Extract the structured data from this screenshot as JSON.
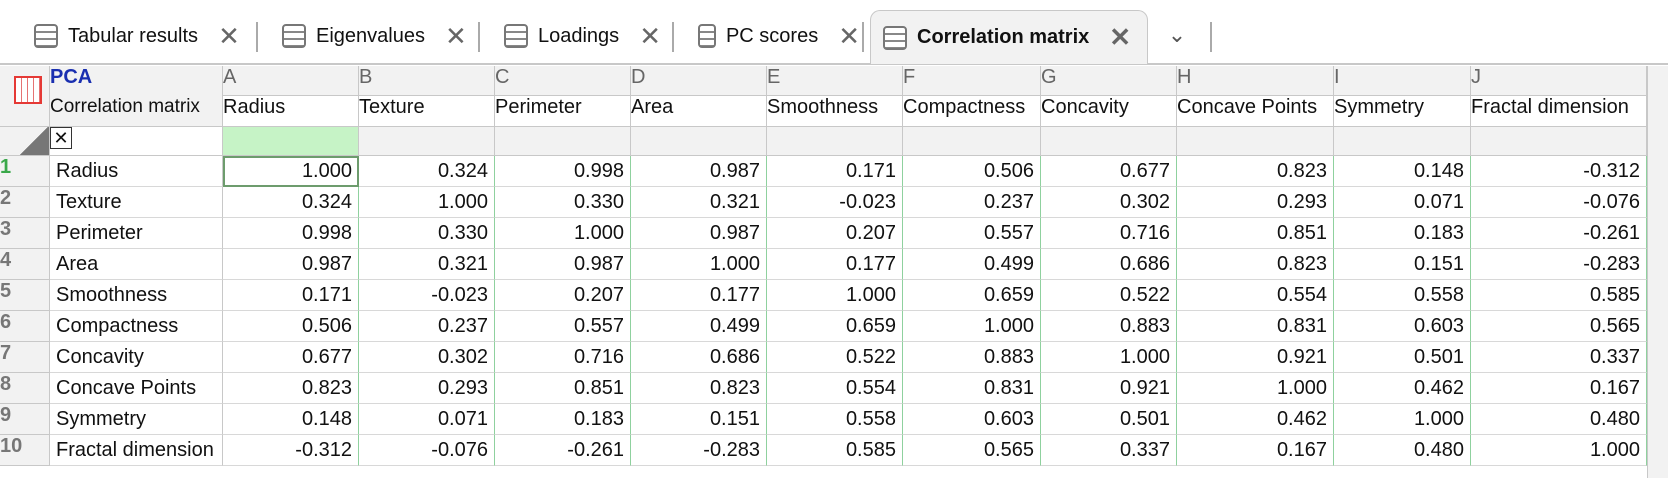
{
  "tabs": [
    {
      "label": "Tabular results",
      "active": false
    },
    {
      "label": "Eigenvalues",
      "active": false
    },
    {
      "label": "Loadings",
      "active": false
    },
    {
      "label": "PC scores",
      "active": false
    },
    {
      "label": "Correlation matrix",
      "active": true
    }
  ],
  "sheet": {
    "name": "PCA",
    "caption": "Correlation matrix"
  },
  "table": {
    "column_letters": [
      "A",
      "B",
      "C",
      "D",
      "E",
      "F",
      "G",
      "H",
      "I",
      "J"
    ],
    "headers": [
      "Radius",
      "Texture",
      "Perimeter",
      "Area",
      "Smoothness",
      "Compactness",
      "Concavity",
      "Concave Points",
      "Symmetry",
      "Fractal dimension"
    ],
    "row_numbers": [
      1,
      2,
      3,
      4,
      5,
      6,
      7,
      8,
      9,
      10
    ],
    "rows": [
      {
        "label": "Radius",
        "values": [
          "1.000",
          "0.324",
          "0.998",
          "0.987",
          "0.171",
          "0.506",
          "0.677",
          "0.823",
          "0.148",
          "-0.312"
        ]
      },
      {
        "label": "Texture",
        "values": [
          "0.324",
          "1.000",
          "0.330",
          "0.321",
          "-0.023",
          "0.237",
          "0.302",
          "0.293",
          "0.071",
          "-0.076"
        ]
      },
      {
        "label": "Perimeter",
        "values": [
          "0.998",
          "0.330",
          "1.000",
          "0.987",
          "0.207",
          "0.557",
          "0.716",
          "0.851",
          "0.183",
          "-0.261"
        ]
      },
      {
        "label": "Area",
        "values": [
          "0.987",
          "0.321",
          "0.987",
          "1.000",
          "0.177",
          "0.499",
          "0.686",
          "0.823",
          "0.151",
          "-0.283"
        ]
      },
      {
        "label": "Smoothness",
        "values": [
          "0.171",
          "-0.023",
          "0.207",
          "0.177",
          "1.000",
          "0.659",
          "0.522",
          "0.554",
          "0.558",
          "0.585"
        ]
      },
      {
        "label": "Compactness",
        "values": [
          "0.506",
          "0.237",
          "0.557",
          "0.499",
          "0.659",
          "1.000",
          "0.883",
          "0.831",
          "0.603",
          "0.565"
        ]
      },
      {
        "label": "Concavity",
        "values": [
          "0.677",
          "0.302",
          "0.716",
          "0.686",
          "0.522",
          "0.883",
          "1.000",
          "0.921",
          "0.501",
          "0.337"
        ]
      },
      {
        "label": "Concave Points",
        "values": [
          "0.823",
          "0.293",
          "0.851",
          "0.823",
          "0.554",
          "0.831",
          "0.921",
          "1.000",
          "0.462",
          "0.167"
        ]
      },
      {
        "label": "Symmetry",
        "values": [
          "0.148",
          "0.071",
          "0.183",
          "0.151",
          "0.558",
          "0.603",
          "0.501",
          "0.462",
          "1.000",
          "0.480"
        ]
      },
      {
        "label": "Fractal dimension",
        "values": [
          "-0.312",
          "-0.076",
          "-0.261",
          "-0.283",
          "0.585",
          "0.565",
          "0.337",
          "0.167",
          "0.480",
          "1.000"
        ]
      }
    ]
  }
}
